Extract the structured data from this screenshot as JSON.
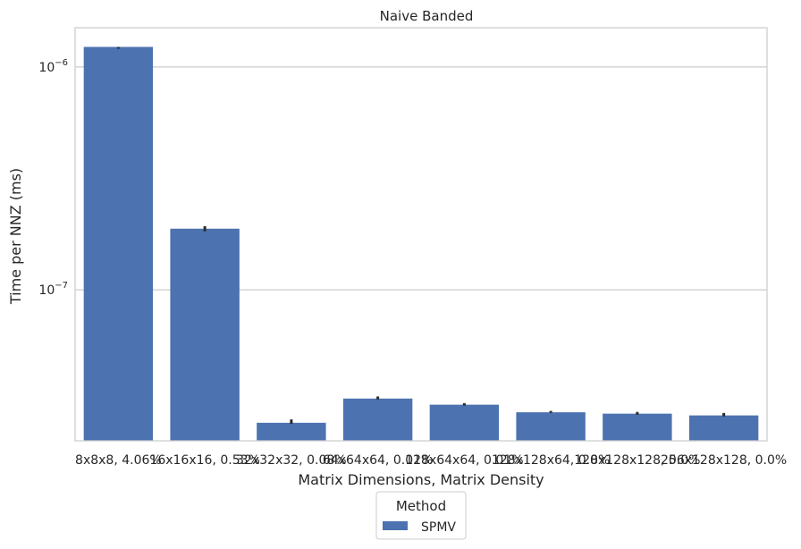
{
  "chart_data": {
    "type": "bar",
    "title": "Naive Banded",
    "xlabel": "Matrix Dimensions, Matrix Density",
    "ylabel": "Time per NNZ (ms)",
    "yscale": "log",
    "ylim": [
      2.1e-08,
      1.5e-06
    ],
    "yticks": [
      {
        "value": 1e-06,
        "label_base": "10",
        "label_exp": "−6"
      },
      {
        "value": 1e-07,
        "label_base": "10",
        "label_exp": "−7"
      }
    ],
    "grid": true,
    "categories": [
      "8x8x8, 4.06%",
      "16x16x16, 0.53%",
      "32x32x32, 0.08%",
      "64x64x64, 0.01%",
      "128x64x64, 0.01%",
      "128x128x64, 0.0%",
      "128x128x128, 0.0%",
      "256x128x128, 0.0%"
    ],
    "series": [
      {
        "name": "SPMV",
        "color": "#4c72b0",
        "values": [
          1.23e-06,
          1.88e-07,
          2.53e-08,
          3.25e-08,
          3.05e-08,
          2.82e-08,
          2.78e-08,
          2.73e-08
        ],
        "err_low": [
          1.23e-06,
          1.83e-07,
          2.5e-08,
          3.22e-08,
          3.02e-08,
          2.8e-08,
          2.75e-08,
          2.7e-08
        ],
        "err_high": [
          1.23e-06,
          1.93e-07,
          2.62e-08,
          3.32e-08,
          3.1e-08,
          2.86e-08,
          2.83e-08,
          2.8e-08
        ]
      }
    ],
    "legend": {
      "title": "Method",
      "position": "bottom-center"
    }
  }
}
